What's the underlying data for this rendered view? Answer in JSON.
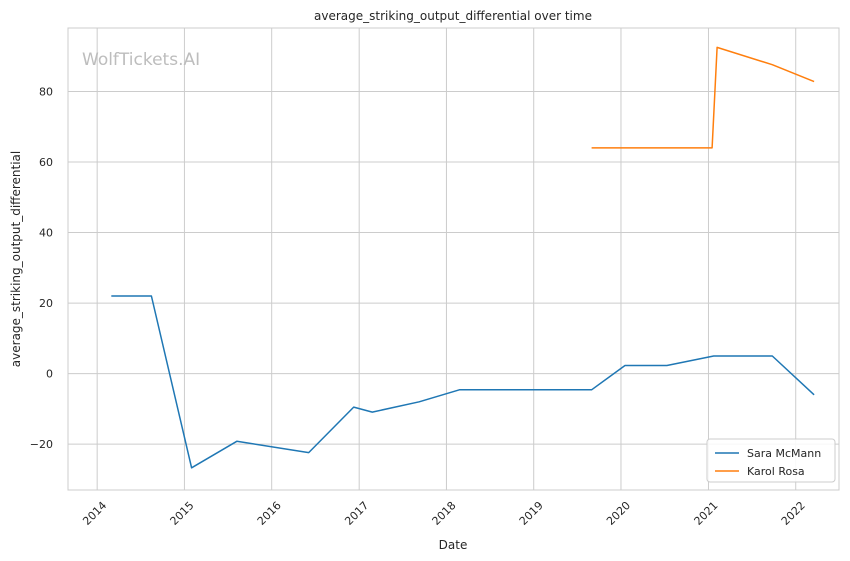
{
  "chart_data": {
    "type": "line",
    "title": "average_striking_output_differential over time",
    "xlabel": "Date",
    "ylabel": "average_striking_output_differential",
    "watermark": "WolfTickets.AI",
    "x_ticks": [
      "2014",
      "2015",
      "2016",
      "2017",
      "2018",
      "2019",
      "2020",
      "2021",
      "2022"
    ],
    "y_ticks": [
      -20,
      0,
      20,
      40,
      60,
      80
    ],
    "xlim": [
      "2013-09-01",
      "2022-07-01"
    ],
    "ylim": [
      -33,
      98
    ],
    "grid": true,
    "legend_position": "bottom-right",
    "series": [
      {
        "name": "Sara McMann",
        "color": "#1f77b4",
        "points": [
          {
            "x": "2014-03-01",
            "y": 22.0
          },
          {
            "x": "2014-08-16",
            "y": 22.0
          },
          {
            "x": "2015-01-31",
            "y": -26.7
          },
          {
            "x": "2015-08-08",
            "y": -19.2
          },
          {
            "x": "2016-06-04",
            "y": -22.4
          },
          {
            "x": "2016-12-09",
            "y": -9.5
          },
          {
            "x": "2017-02-25",
            "y": -10.9
          },
          {
            "x": "2017-09-09",
            "y": -8.0
          },
          {
            "x": "2018-02-24",
            "y": -4.6
          },
          {
            "x": "2019-08-31",
            "y": -4.6
          },
          {
            "x": "2020-01-18",
            "y": 2.3
          },
          {
            "x": "2020-07-11",
            "y": 2.3
          },
          {
            "x": "2021-01-23",
            "y": 5.0
          },
          {
            "x": "2021-09-25",
            "y": 5.0
          },
          {
            "x": "2022-03-19",
            "y": -6.0
          }
        ]
      },
      {
        "name": "Karol Rosa",
        "color": "#ff7f0e",
        "points": [
          {
            "x": "2019-08-31",
            "y": 64.0
          },
          {
            "x": "2021-01-16",
            "y": 64.0
          },
          {
            "x": "2021-02-06",
            "y": 92.5
          },
          {
            "x": "2021-09-25",
            "y": 87.6
          },
          {
            "x": "2022-03-19",
            "y": 82.8
          }
        ]
      }
    ]
  }
}
